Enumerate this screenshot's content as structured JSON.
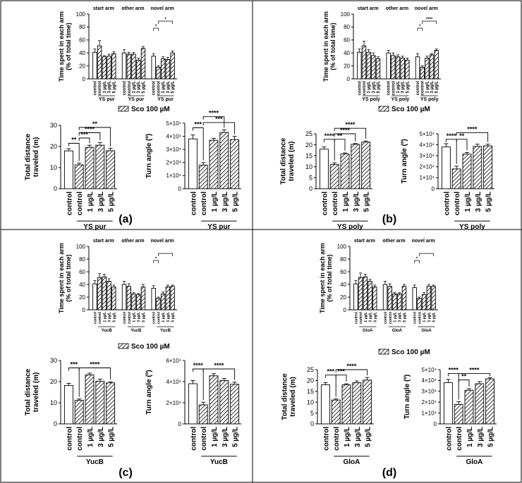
{
  "figure": {
    "sco_legend": "Sco 100 µM",
    "panel_labels": [
      "(a)",
      "(b)",
      "(c)",
      "(d)"
    ]
  },
  "colors": {
    "frame": "#000000",
    "bar_fill": "#ffffff",
    "hatch": "#000000"
  },
  "chart_data": [
    {
      "panel": "a",
      "type": "bar",
      "kind": "arm",
      "ylabel": "Time spent in each arm\n(% of total time)",
      "yticks": [
        0,
        20,
        40,
        60,
        80,
        100
      ],
      "ylim": [
        0,
        100
      ],
      "groups": [
        "start arm",
        "other arm",
        "novel arm"
      ],
      "categories": [
        "control",
        "control",
        "1 µg/L",
        "3 µg/L",
        "5 µg/L"
      ],
      "hatched": [
        false,
        true,
        true,
        true,
        true
      ],
      "group_label": "YS pur",
      "values": [
        [
          41,
          51,
          34,
          35,
          39
        ],
        [
          40,
          38,
          38,
          29,
          47
        ],
        [
          35,
          18,
          31,
          30,
          40
        ]
      ],
      "errors": [
        [
          5,
          8,
          2,
          3,
          3
        ],
        [
          5,
          3,
          3,
          3,
          3
        ],
        [
          4,
          2,
          3,
          3,
          3
        ]
      ],
      "sig": [
        {
          "g": 2,
          "from": 0,
          "to": 1,
          "label": "*"
        },
        {
          "g": 2,
          "from": 1,
          "to": 4,
          "label": "*"
        }
      ]
    },
    {
      "panel": "b",
      "type": "bar",
      "kind": "arm",
      "ylabel": "Time spent in each arm\n(% of total time)",
      "yticks": [
        0,
        20,
        40,
        60,
        80,
        100
      ],
      "ylim": [
        0,
        100
      ],
      "groups": [
        "start arm",
        "other arm",
        "novel arm"
      ],
      "categories": [
        "control",
        "control",
        "1 µg/L",
        "3 µg/L",
        "5 µg/L"
      ],
      "hatched": [
        false,
        true,
        true,
        true,
        true
      ],
      "group_label": "YS poly",
      "values": [
        [
          41,
          51,
          41,
          36,
          31
        ],
        [
          40,
          36,
          34,
          32,
          29
        ],
        [
          34,
          18,
          32,
          37,
          44
        ]
      ],
      "errors": [
        [
          5,
          7,
          4,
          4,
          3
        ],
        [
          4,
          4,
          3,
          3,
          3
        ],
        [
          5,
          2,
          3,
          2,
          2
        ]
      ],
      "sig": [
        {
          "g": 2,
          "from": 0,
          "to": 1,
          "label": "*"
        },
        {
          "g": 2,
          "from": 1,
          "to": 4,
          "label": "****"
        }
      ]
    },
    {
      "panel": "c",
      "type": "bar",
      "kind": "arm",
      "ylabel": "Time spent in each arm\n(% of total time)",
      "yticks": [
        0,
        20,
        40,
        60,
        80,
        100
      ],
      "ylim": [
        0,
        100
      ],
      "groups": [
        "start arm",
        "other arm",
        "novel arm"
      ],
      "categories": [
        "control",
        "control",
        "1 µg/L",
        "3 µg/L",
        "5 µg/L"
      ],
      "hatched": [
        false,
        true,
        true,
        true,
        true
      ],
      "group_label": "YucB",
      "values": [
        [
          41,
          51,
          52,
          45,
          36
        ],
        [
          40,
          37,
          25,
          24,
          36
        ],
        [
          34,
          18,
          25,
          36,
          37
        ]
      ],
      "errors": [
        [
          5,
          6,
          4,
          4,
          3
        ],
        [
          5,
          4,
          2,
          2,
          4
        ],
        [
          4,
          2,
          3,
          3,
          2
        ]
      ],
      "sig": [
        {
          "g": 2,
          "from": 0,
          "to": 1,
          "label": "*"
        },
        {
          "g": 2,
          "from": 1,
          "to": 4,
          "label": ""
        }
      ]
    },
    {
      "panel": "d",
      "type": "bar",
      "kind": "arm",
      "ylabel": "Time spent in each arm\n(% of total time)",
      "yticks": [
        0,
        20,
        40,
        60,
        80,
        100
      ],
      "ylim": [
        0,
        100
      ],
      "groups": [
        "start arm",
        "other arm",
        "novel arm"
      ],
      "categories": [
        "control",
        "control",
        "1 µg/L",
        "3 µg/L",
        "5 µg/L"
      ],
      "hatched": [
        false,
        true,
        true,
        true,
        true
      ],
      "group_label": "GloA",
      "values": [
        [
          41,
          51,
          52,
          45,
          36
        ],
        [
          40,
          37,
          25,
          25,
          37
        ],
        [
          35,
          18,
          24,
          37,
          37
        ]
      ],
      "errors": [
        [
          5,
          7,
          4,
          3,
          3
        ],
        [
          5,
          4,
          2,
          2,
          3
        ],
        [
          4,
          2,
          3,
          3,
          2
        ]
      ],
      "sig": [
        {
          "g": 2,
          "from": 0,
          "to": 1,
          "label": "*"
        },
        {
          "g": 2,
          "from": 1,
          "to": 4,
          "label": ""
        }
      ]
    },
    {
      "panel": "a",
      "type": "bar",
      "kind": "simple",
      "ylabel": "Total distance\ntraveled (m)",
      "yticks": [
        0,
        10,
        20,
        30
      ],
      "ylim": [
        0,
        30
      ],
      "categories": [
        "control",
        "control",
        "1 µg/L",
        "3 µg/L",
        "5 µg/L"
      ],
      "hatched": [
        false,
        true,
        true,
        true,
        true
      ],
      "group_label": "YS pur",
      "values": [
        17.9,
        11.3,
        19.6,
        20.6,
        18.0
      ],
      "errors": [
        1.0,
        0.8,
        1.0,
        1.3,
        1.1
      ],
      "sig": [
        {
          "from": 0,
          "to": 1,
          "label": "**",
          "y": 21.5
        },
        {
          "from": 1,
          "to": 2,
          "label": "***",
          "y": 24.0
        },
        {
          "from": 1,
          "to": 3,
          "label": "****",
          "y": 26.5
        },
        {
          "from": 1,
          "to": 4,
          "label": "**",
          "y": 29.0
        }
      ]
    },
    {
      "panel": "a",
      "type": "bar",
      "kind": "simple",
      "ylabel": "Turn angle (º)",
      "yticks": [
        0,
        10000,
        20000,
        30000,
        40000,
        50000
      ],
      "ytick_labels": [
        "0",
        "1×10⁴",
        "2×10⁴",
        "3×10⁴",
        "4×10⁴",
        "5×10⁴"
      ],
      "ylim": [
        0,
        50000
      ],
      "categories": [
        "control",
        "control",
        "1 µg/L",
        "3 µg/L",
        "5 µg/L"
      ],
      "hatched": [
        false,
        true,
        true,
        true,
        true
      ],
      "group_label": "YS pur",
      "values": [
        38000,
        18000,
        37000,
        43000,
        37500
      ],
      "errors": [
        3000,
        2000,
        1500,
        2000,
        2500
      ],
      "sig": [
        {
          "from": 0,
          "to": 1,
          "label": "***",
          "y": 46500
        },
        {
          "from": 1,
          "to": 3,
          "label": "****",
          "y": 55000
        },
        {
          "from": 1,
          "to": 4,
          "label": "***",
          "y": 50500
        }
      ]
    },
    {
      "panel": "b",
      "type": "bar",
      "kind": "simple",
      "ylabel": "Total distance\ntraveled (m)",
      "yticks": [
        0,
        5,
        10,
        15,
        20,
        25
      ],
      "ylim": [
        0,
        25
      ],
      "categories": [
        "control",
        "control",
        "1 µg/L",
        "3 µg/L",
        "5 µg/L"
      ],
      "hatched": [
        false,
        true,
        true,
        true,
        true
      ],
      "group_label": "YS poly",
      "values": [
        18.0,
        11.0,
        15.8,
        20.2,
        21.2
      ],
      "errors": [
        1.0,
        0.8,
        0.5,
        0.4,
        0.5
      ],
      "sig": [
        {
          "from": 0,
          "to": 1,
          "label": "****",
          "y": 22.5
        },
        {
          "from": 1,
          "to": 2,
          "label": "**",
          "y": 22.5
        },
        {
          "from": 1,
          "to": 3,
          "label": "****",
          "y": 25.0
        },
        {
          "from": 1,
          "to": 4,
          "label": "****",
          "y": 27.5
        }
      ]
    },
    {
      "panel": "b",
      "type": "bar",
      "kind": "simple",
      "ylabel": "Turn angle (º)",
      "yticks": [
        0,
        10000,
        20000,
        30000,
        40000,
        50000
      ],
      "ytick_labels": [
        "0",
        "1×10⁴",
        "2×10⁴",
        "3×10⁴",
        "4×10⁴",
        "5×10⁴"
      ],
      "ylim": [
        0,
        50000
      ],
      "categories": [
        "control",
        "control",
        "1 µg/L",
        "3 µg/L",
        "5 µg/L"
      ],
      "hatched": [
        false,
        true,
        true,
        true,
        true
      ],
      "group_label": "YS poly",
      "values": [
        38000,
        18000,
        31500,
        38500,
        39000
      ],
      "errors": [
        3000,
        2500,
        1500,
        2000,
        1500
      ],
      "sig": [
        {
          "from": 0,
          "to": 1,
          "label": "****",
          "y": 45000
        },
        {
          "from": 1,
          "to": 2,
          "label": "**",
          "y": 45000
        },
        {
          "from": 1,
          "to": 4,
          "label": "****",
          "y": 51000
        }
      ]
    },
    {
      "panel": "c",
      "type": "bar",
      "kind": "simple",
      "ylabel": "Total distance\ntraveled (m)",
      "yticks": [
        0,
        10,
        20,
        30
      ],
      "ylim": [
        0,
        30
      ],
      "categories": [
        "control",
        "control",
        "1 µg/L",
        "3 µg/L",
        "5 µg/L"
      ],
      "hatched": [
        false,
        true,
        true,
        true,
        true
      ],
      "group_label": "YucB",
      "values": [
        18.2,
        11.2,
        23.2,
        20.2,
        19.4
      ],
      "errors": [
        1.0,
        0.6,
        0.8,
        1.0,
        0.5
      ],
      "sig": [
        {
          "from": 0,
          "to": 1,
          "label": "***",
          "y": 26.5
        },
        {
          "from": 1,
          "to": 4,
          "label": "****",
          "y": 26.5
        }
      ]
    },
    {
      "panel": "c",
      "type": "bar",
      "kind": "simple",
      "ylabel": "Turn angle (º)",
      "yticks": [
        0,
        20000,
        40000,
        60000
      ],
      "ytick_labels": [
        "0",
        "2×10⁴",
        "4×10⁴",
        "6×10⁴"
      ],
      "ylim": [
        0,
        60000
      ],
      "categories": [
        "control",
        "control",
        "1 µg/L",
        "3 µg/L",
        "5 µg/L"
      ],
      "hatched": [
        false,
        true,
        true,
        true,
        true
      ],
      "group_label": "YucB",
      "values": [
        38000,
        18000,
        45500,
        41000,
        37500
      ],
      "errors": [
        3000,
        2500,
        2000,
        2000,
        2000
      ],
      "sig": [
        {
          "from": 0,
          "to": 1,
          "label": "****",
          "y": 52000
        },
        {
          "from": 1,
          "to": 4,
          "label": "****",
          "y": 52000
        }
      ]
    },
    {
      "panel": "d",
      "type": "bar",
      "kind": "simple",
      "ylabel": "Total distance\ntraveled (m)",
      "yticks": [
        0,
        5,
        10,
        15,
        20,
        25
      ],
      "ylim": [
        0,
        25
      ],
      "categories": [
        "control",
        "control",
        "1 µg/L",
        "3 µg/L",
        "5 µg/L"
      ],
      "hatched": [
        false,
        true,
        true,
        true,
        true
      ],
      "group_label": "GloA",
      "values": [
        18.0,
        11.0,
        18.0,
        19.0,
        20.2
      ],
      "errors": [
        1.0,
        0.5,
        0.5,
        0.8,
        1.2
      ],
      "sig": [
        {
          "from": 0,
          "to": 1,
          "label": "***",
          "y": 22.5
        },
        {
          "from": 1,
          "to": 2,
          "label": "***",
          "y": 22.5
        },
        {
          "from": 1,
          "to": 4,
          "label": "****",
          "y": 25.0
        }
      ]
    },
    {
      "panel": "d",
      "type": "bar",
      "kind": "simple",
      "ylabel": "Turn angle (º)",
      "yticks": [
        0,
        10000,
        20000,
        30000,
        40000,
        50000
      ],
      "ytick_labels": [
        "0",
        "1×10⁴",
        "2×10⁴",
        "3×10⁴",
        "4×10⁴",
        "5×10⁴"
      ],
      "ylim": [
        0,
        50000
      ],
      "categories": [
        "control",
        "control",
        "1 µg/L",
        "3 µg/L",
        "5 µg/L"
      ],
      "hatched": [
        false,
        true,
        true,
        true,
        true
      ],
      "group_label": "GloA",
      "values": [
        38000,
        18000,
        31000,
        37000,
        41500
      ],
      "errors": [
        3000,
        2500,
        1500,
        2000,
        1000
      ],
      "sig": [
        {
          "from": 0,
          "to": 1,
          "label": "****",
          "y": 46500
        },
        {
          "from": 1,
          "to": 2,
          "label": "**",
          "y": 40500
        },
        {
          "from": 1,
          "to": 4,
          "label": "****",
          "y": 46500
        }
      ]
    }
  ]
}
